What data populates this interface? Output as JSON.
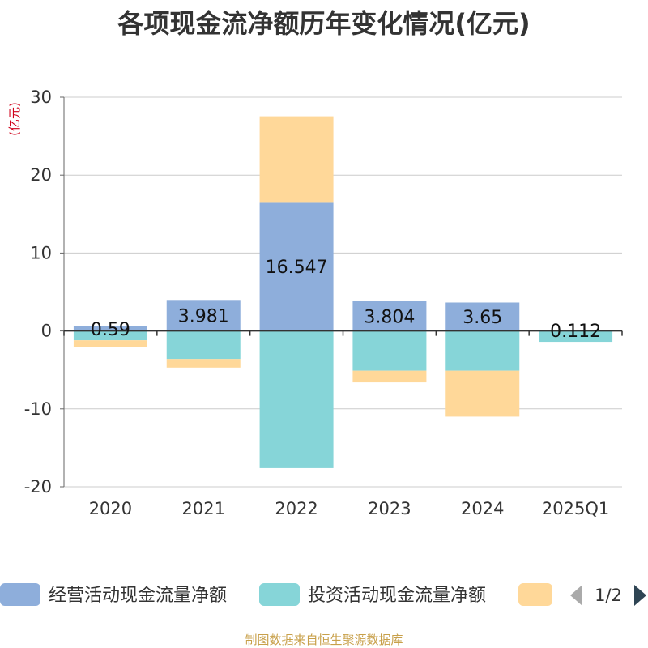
{
  "chart_data": {
    "type": "bar",
    "stacked": true,
    "title": "各项现金流净额历年变化情况(亿元)",
    "ylabel": "(亿元)",
    "xlabel": "",
    "categories": [
      "2020",
      "2021",
      "2022",
      "2023",
      "2024",
      "2025Q1"
    ],
    "ylim": [
      -20,
      30
    ],
    "yticks": [
      -20,
      -10,
      0,
      10,
      20,
      30
    ],
    "grid": true,
    "series": [
      {
        "name": "经营活动现金流量净额",
        "color": "#8eaedb",
        "values": [
          0.59,
          3.981,
          16.547,
          3.804,
          3.65,
          0.112
        ],
        "data_labels": [
          "0.59",
          "3.981",
          "16.547",
          "3.804",
          "3.65",
          "0.112"
        ]
      },
      {
        "name": "投资活动现金流量净额",
        "color": "#86d5d8",
        "values": [
          -1.2,
          -3.6,
          -17.6,
          -5.1,
          -5.1,
          -1.4
        ]
      },
      {
        "name": "",
        "color": "#ffd899",
        "values": [
          -0.9,
          -1.1,
          11.0,
          -1.5,
          -5.9,
          0
        ]
      }
    ],
    "legend": {
      "position": "bottom",
      "page": "1/2"
    }
  },
  "source": "制图数据来自恒生聚源数据库"
}
